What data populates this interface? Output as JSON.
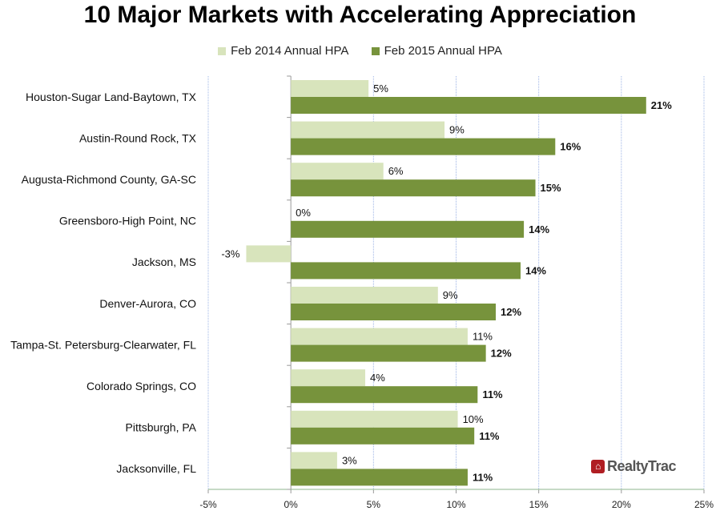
{
  "chart_data": {
    "type": "bar",
    "orientation": "horizontal",
    "title": "10 Major Markets with Accelerating Appreciation",
    "categories": [
      "Houston-Sugar Land-Baytown, TX",
      "Austin-Round Rock, TX",
      "Augusta-Richmond County, GA-SC",
      "Greensboro-High Point, NC",
      "Jackson, MS",
      "Denver-Aurora, CO",
      "Tampa-St. Petersburg-Clearwater, FL",
      "Colorado Springs, CO",
      "Pittsburgh, PA",
      "Jacksonville, FL"
    ],
    "series": [
      {
        "name": "Feb 2014 Annual HPA",
        "color": "#d8e4bc",
        "values": [
          4.7,
          9.3,
          5.6,
          0,
          -2.7,
          8.9,
          10.7,
          4.5,
          10.1,
          2.8
        ],
        "labels": [
          "5%",
          "9%",
          "6%",
          "0%",
          "-3%",
          "9%",
          "11%",
          "4%",
          "10%",
          "3%"
        ]
      },
      {
        "name": "Feb 2015 Annual HPA",
        "color": "#77933c",
        "values": [
          21.5,
          16.0,
          14.8,
          14.1,
          13.9,
          12.4,
          11.8,
          11.3,
          11.1,
          10.7
        ],
        "labels": [
          "21%",
          "16%",
          "15%",
          "14%",
          "14%",
          "12%",
          "12%",
          "11%",
          "11%",
          "11%"
        ]
      }
    ],
    "xlim": [
      -5,
      25
    ],
    "xticks": [
      "-5%",
      "0%",
      "5%",
      "10%",
      "15%",
      "20%",
      "25%"
    ],
    "xtick_values": [
      -5,
      0,
      5,
      10,
      15,
      20,
      25
    ],
    "grid": true,
    "legend_position": "top"
  },
  "logo": {
    "text": "RealtyTrac"
  }
}
